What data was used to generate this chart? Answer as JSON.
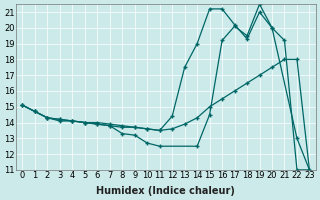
{
  "xlabel": "Humidex (Indice chaleur)",
  "bg_color": "#cceaea",
  "grid_color": "#ffffff",
  "line_color": "#006666",
  "xlim": [
    -0.5,
    23.5
  ],
  "ylim": [
    11,
    21.5
  ],
  "yticks": [
    11,
    12,
    13,
    14,
    15,
    16,
    17,
    18,
    19,
    20,
    21
  ],
  "xticks": [
    0,
    1,
    2,
    3,
    4,
    5,
    6,
    7,
    8,
    9,
    10,
    11,
    12,
    13,
    14,
    15,
    16,
    17,
    18,
    19,
    20,
    21,
    22,
    23
  ],
  "line1_x": [
    0,
    1,
    2,
    3,
    4,
    5,
    6,
    7,
    8,
    9,
    10,
    11,
    12,
    13,
    14,
    15,
    16,
    17,
    18,
    19,
    20,
    22,
    23
  ],
  "line1_y": [
    15.1,
    14.7,
    14.3,
    14.1,
    14.1,
    14.0,
    14.0,
    13.9,
    13.8,
    13.7,
    13.6,
    13.5,
    14.4,
    17.5,
    19.0,
    21.2,
    21.2,
    20.2,
    19.3,
    21.0,
    20.0,
    13.0,
    11.0
  ],
  "line2_x": [
    0,
    1,
    2,
    3,
    4,
    5,
    6,
    7,
    8,
    9,
    10,
    11,
    12,
    13,
    14,
    15,
    16,
    17,
    18,
    19,
    20,
    21,
    22,
    23
  ],
  "line2_y": [
    15.1,
    14.7,
    14.3,
    14.2,
    14.1,
    14.0,
    13.9,
    13.8,
    13.7,
    13.7,
    13.6,
    13.5,
    13.6,
    13.9,
    14.3,
    15.0,
    15.5,
    16.0,
    16.5,
    17.0,
    17.5,
    18.0,
    18.0,
    11.0
  ],
  "line3_x": [
    0,
    1,
    2,
    3,
    4,
    5,
    6,
    7,
    8,
    9,
    10,
    11,
    14,
    15,
    16,
    17,
    18,
    19,
    20,
    21,
    22,
    23
  ],
  "line3_y": [
    15.1,
    14.7,
    14.3,
    14.2,
    14.1,
    14.0,
    13.9,
    13.8,
    13.3,
    13.2,
    12.7,
    12.5,
    12.5,
    14.5,
    19.2,
    20.1,
    19.5,
    21.5,
    20.0,
    19.2,
    11.0,
    11.0
  ],
  "marker": "+",
  "markersize": 3,
  "linewidth": 0.9,
  "xlabel_fontsize": 7,
  "tick_fontsize": 6
}
